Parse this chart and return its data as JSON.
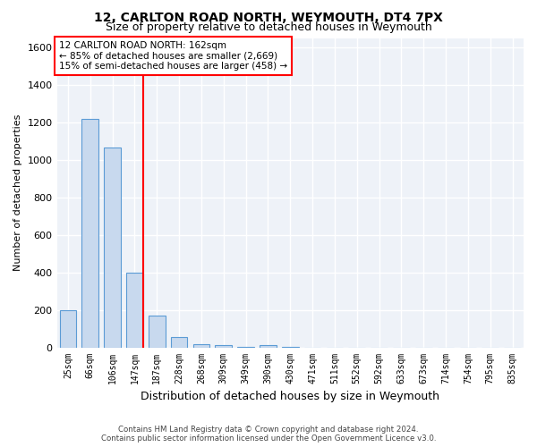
{
  "title": "12, CARLTON ROAD NORTH, WEYMOUTH, DT4 7PX",
  "subtitle": "Size of property relative to detached houses in Weymouth",
  "xlabel": "Distribution of detached houses by size in Weymouth",
  "ylabel": "Number of detached properties",
  "bin_labels": [
    "25sqm",
    "66sqm",
    "106sqm",
    "147sqm",
    "187sqm",
    "228sqm",
    "268sqm",
    "309sqm",
    "349sqm",
    "390sqm",
    "430sqm",
    "471sqm",
    "511sqm",
    "552sqm",
    "592sqm",
    "633sqm",
    "673sqm",
    "714sqm",
    "754sqm",
    "795sqm",
    "835sqm"
  ],
  "bar_values": [
    200,
    1220,
    1065,
    400,
    170,
    55,
    15,
    10,
    5,
    10,
    5,
    0,
    0,
    0,
    0,
    0,
    0,
    0,
    0,
    0,
    0
  ],
  "bar_color": "#c8d9ee",
  "bar_edge_color": "#5b9bd5",
  "marker_line_color": "red",
  "annotation_line1": "12 CARLTON ROAD NORTH: 162sqm",
  "annotation_line2": "← 85% of detached houses are smaller (2,669)",
  "annotation_line3": "15% of semi-detached houses are larger (458) →",
  "annotation_box_color": "white",
  "annotation_box_edge_color": "red",
  "ylim": [
    0,
    1650
  ],
  "yticks": [
    0,
    200,
    400,
    600,
    800,
    1000,
    1200,
    1400,
    1600
  ],
  "plot_bg_color": "#eef2f8",
  "fig_bg_color": "#ffffff",
  "footer_line1": "Contains HM Land Registry data © Crown copyright and database right 2024.",
  "footer_line2": "Contains public sector information licensed under the Open Government Licence v3.0.",
  "title_fontsize": 10,
  "subtitle_fontsize": 9,
  "bar_width": 0.75
}
